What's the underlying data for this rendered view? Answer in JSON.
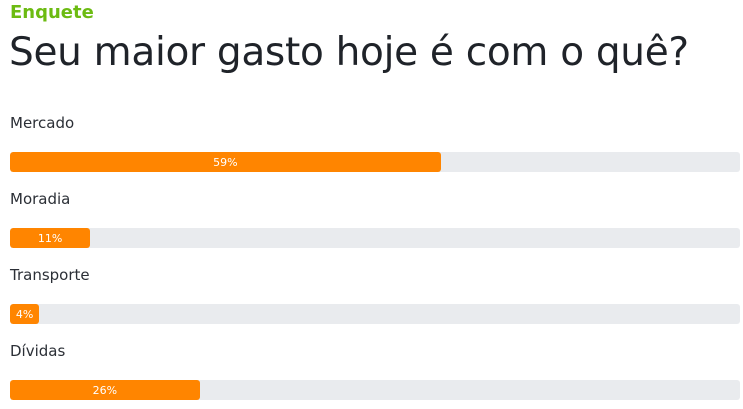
{
  "poll": {
    "kicker": "Enquete",
    "question": "Seu maior gasto hoje é com o quê?",
    "options": [
      {
        "label": "Mercado",
        "percent": 59,
        "percent_label": "59%"
      },
      {
        "label": "Moradia",
        "percent": 11,
        "percent_label": "11%"
      },
      {
        "label": "Transporte",
        "percent": 4,
        "percent_label": "4%"
      },
      {
        "label": "Dívidas",
        "percent": 26,
        "percent_label": "26%"
      }
    ],
    "colors": {
      "kicker": "#6cbb12",
      "bar_fill": "#ff8500",
      "bar_track": "#e9ebee"
    }
  }
}
